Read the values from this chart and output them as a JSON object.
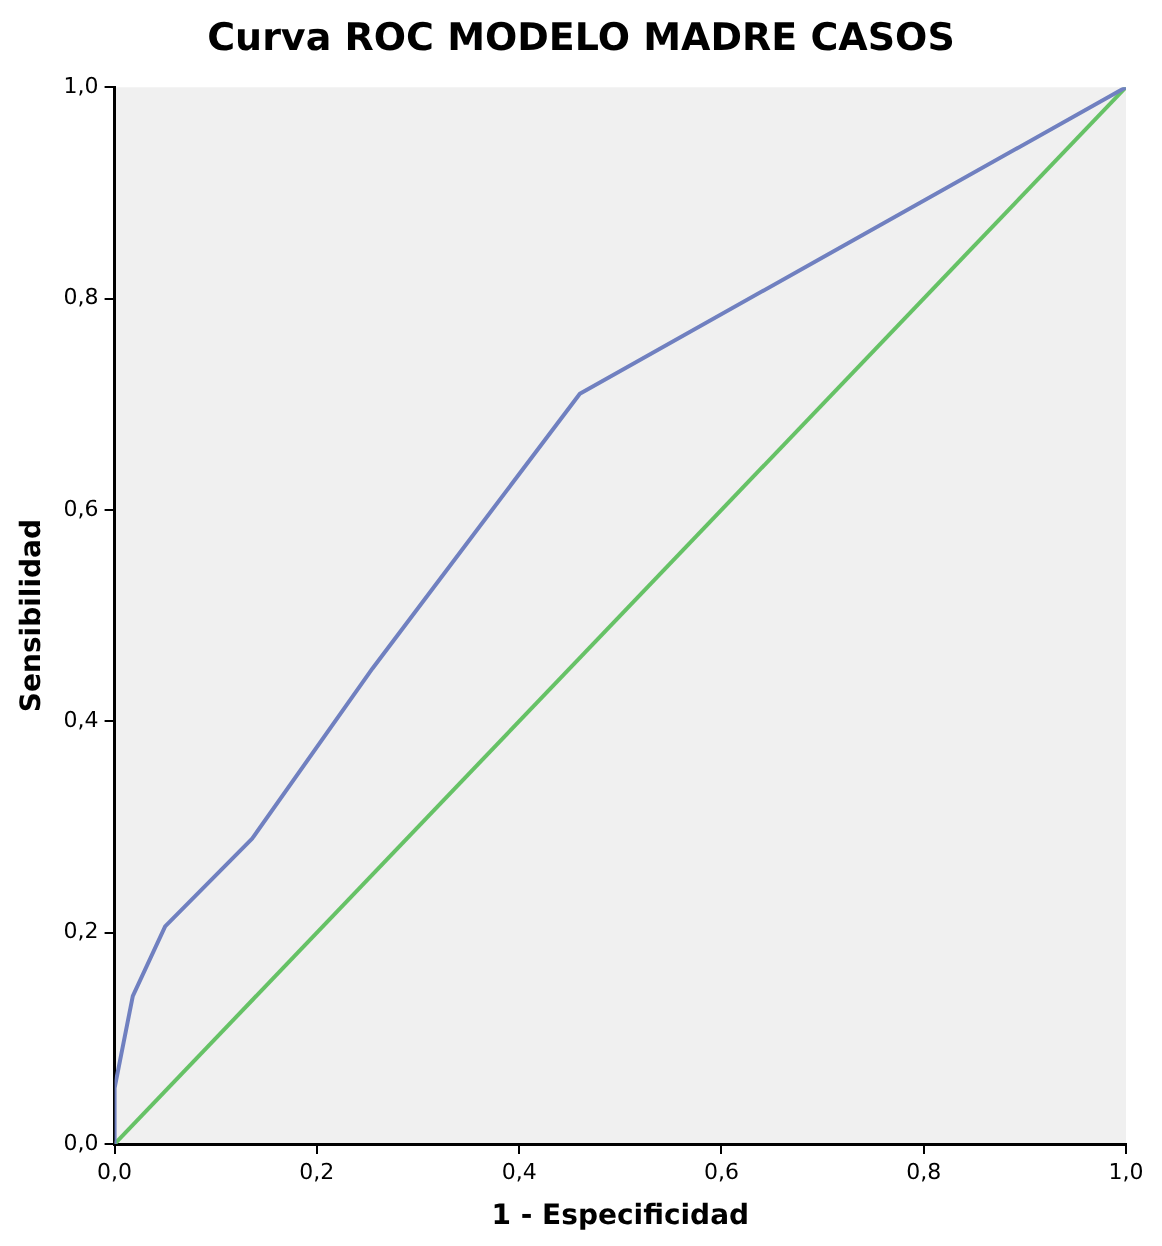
{
  "chart_data": {
    "type": "line",
    "title": "Curva ROC MODELO MADRE CASOS",
    "xlabel": "1 - Especificidad",
    "ylabel": "Sensibilidad",
    "series": [
      {
        "color": "#7080c0",
        "x": [
          0,
          0,
          0.018,
          0.05,
          0.136,
          0.255,
          0.46,
          1
        ],
        "values": [
          0,
          0.053,
          0.14,
          0.206,
          0.289,
          0.45,
          0.71,
          1
        ]
      },
      {
        "color": "#66c266",
        "x": [
          0,
          1
        ],
        "values": [
          0,
          1
        ]
      }
    ],
    "xlim": [
      0,
      1
    ],
    "ylim": [
      0,
      1
    ],
    "xticks": [
      {
        "value": 0,
        "label": "0,0"
      },
      {
        "value": 0.2,
        "label": "0,2"
      },
      {
        "value": 0.4,
        "label": "0,4"
      },
      {
        "value": 0.6,
        "label": "0,6"
      },
      {
        "value": 0.8,
        "label": "0,8"
      },
      {
        "value": 1,
        "label": "1,0"
      }
    ],
    "yticks": [
      {
        "value": 0,
        "label": "0,0"
      },
      {
        "value": 0.2,
        "label": "0,2"
      },
      {
        "value": 0.4,
        "label": "0,4"
      },
      {
        "value": 0.6,
        "label": "0,6"
      },
      {
        "value": 0.8,
        "label": "0,8"
      },
      {
        "value": 1,
        "label": "1,0"
      }
    ],
    "grid": false,
    "legend": false,
    "marker": "none",
    "line_style": "solid"
  }
}
